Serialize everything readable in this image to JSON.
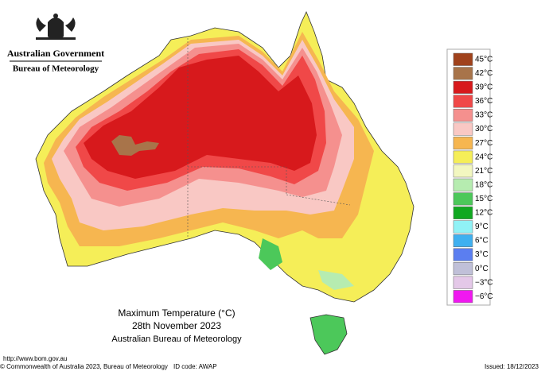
{
  "header": {
    "government": "Australian Government",
    "bureau": "Bureau of Meteorology"
  },
  "title": {
    "line1": "Maximum Temperature (°C)",
    "line2": "28th November 2023",
    "line3": "Australian Bureau of Meteorology"
  },
  "legend": [
    {
      "label": "45°C",
      "color": "#a0421c"
    },
    {
      "label": "42°C",
      "color": "#a8744a"
    },
    {
      "label": "39°C",
      "color": "#d7191c"
    },
    {
      "label": "36°C",
      "color": "#f04848"
    },
    {
      "label": "33°C",
      "color": "#f5908e"
    },
    {
      "label": "30°C",
      "color": "#f9c8c4"
    },
    {
      "label": "27°C",
      "color": "#f6b650"
    },
    {
      "label": "24°C",
      "color": "#f5ee58"
    },
    {
      "label": "21°C",
      "color": "#f2f7c0"
    },
    {
      "label": "18°C",
      "color": "#b6ecb0"
    },
    {
      "label": "15°C",
      "color": "#4cc85a"
    },
    {
      "label": "12°C",
      "color": "#10a820"
    },
    {
      "label": "9°C",
      "color": "#90f2f6"
    },
    {
      "label": "6°C",
      "color": "#3fb0f0"
    },
    {
      "label": "3°C",
      "color": "#5b7ef0"
    },
    {
      "label": "0°C",
      "color": "#c0c0d8"
    },
    {
      "label": "−3°C",
      "color": "#e4c8e8"
    },
    {
      "label": "−6°C",
      "color": "#f018f0"
    }
  ],
  "footer": {
    "url": "http://www.bom.gov.au",
    "copyright": "© Commonwealth of Australia 2023, Bureau of Meteorology",
    "id_code": "ID code: AWAP",
    "issued": "Issued: 18/12/2023"
  }
}
